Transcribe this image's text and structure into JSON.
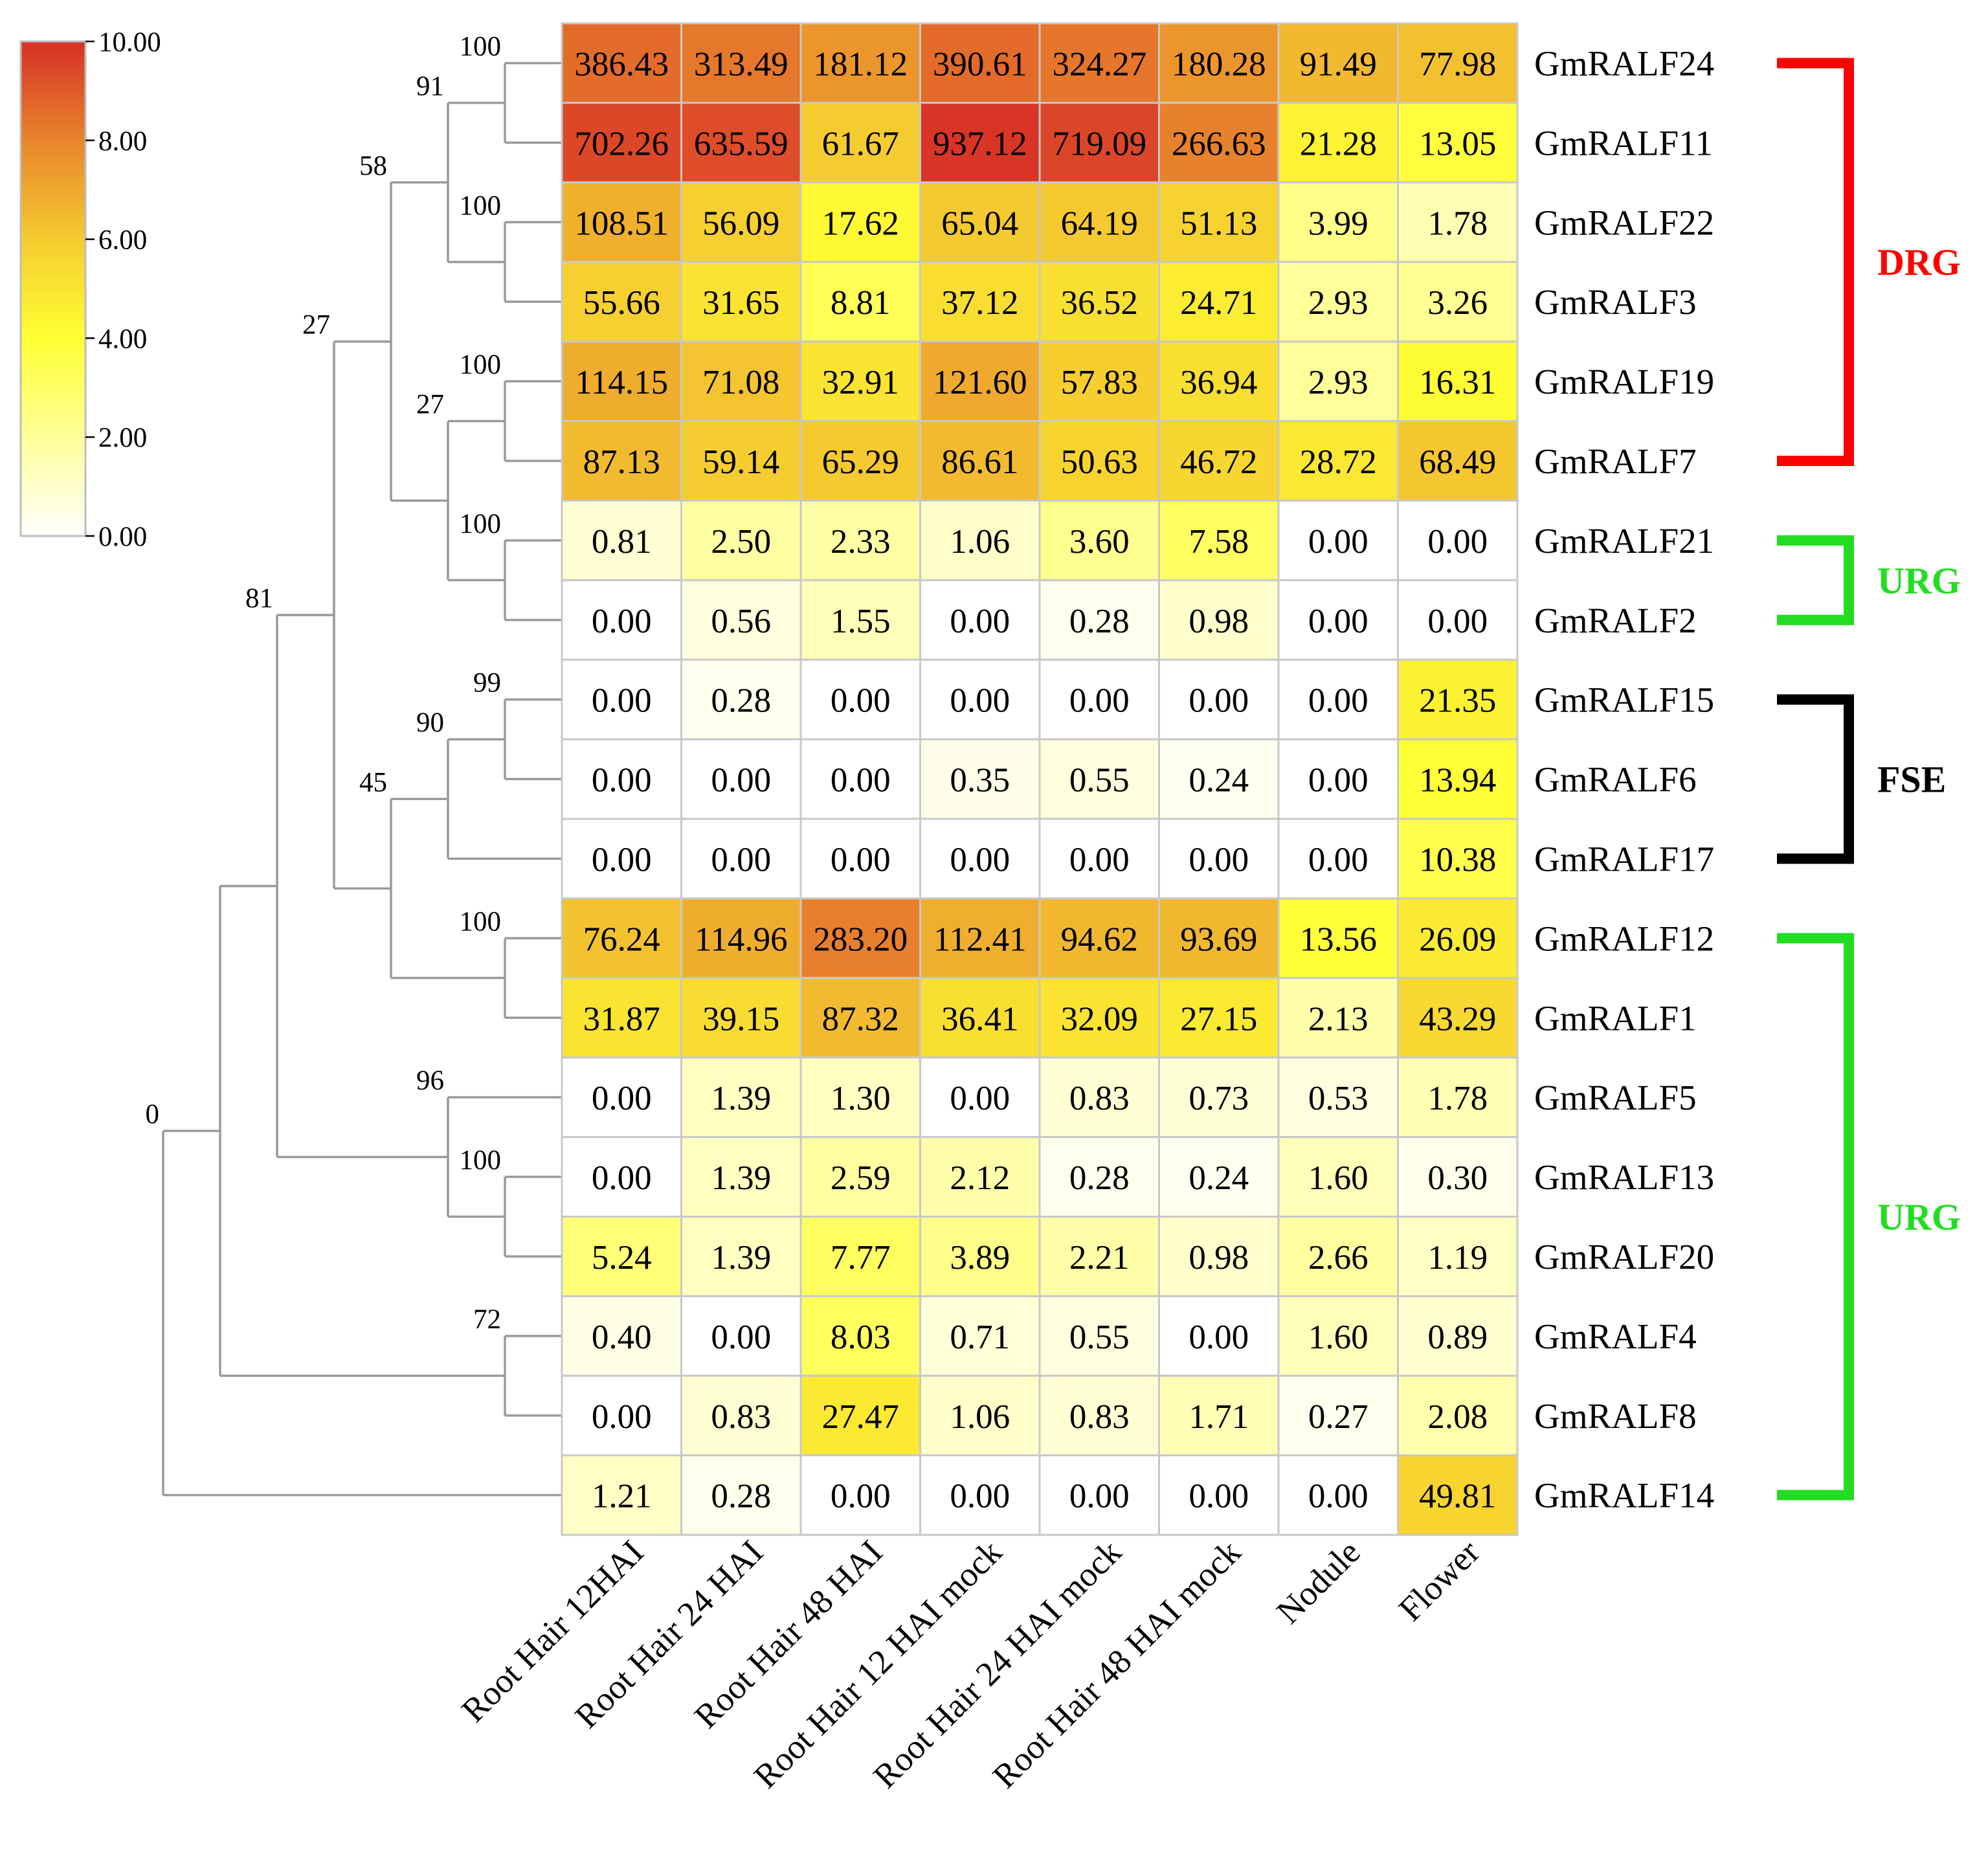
{
  "chart_data": {
    "type": "heatmap",
    "color_scale": {
      "min": 0,
      "max": 10,
      "ticks": [
        "0.00",
        "2.00",
        "4.00",
        "6.00",
        "8.00",
        "10.00"
      ],
      "stops": [
        {
          "at": 0,
          "color": "#ffffff"
        },
        {
          "at": 0.4,
          "color": "#ffff33"
        },
        {
          "at": 0.6,
          "color": "#f5cb30"
        },
        {
          "at": 0.8,
          "color": "#e8852c"
        },
        {
          "at": 1.0,
          "color": "#d73027"
        }
      ],
      "value_transform": "log2(value + 1)"
    },
    "columns": [
      "Root Hair 12HAI",
      "Root Hair 24 HAI",
      "Root Hair 48 HAI",
      "Root Hair 12 HAI mock",
      "Root Hair 24 HAI mock",
      "Root Hair 48 HAI mock",
      "Nodule",
      "Flower"
    ],
    "rows": [
      {
        "gene": "GmRALF24",
        "values": [
          "386.43",
          "313.49",
          "181.12",
          "390.61",
          "324.27",
          "180.28",
          "91.49",
          "77.98"
        ]
      },
      {
        "gene": "GmRALF11",
        "values": [
          "702.26",
          "635.59",
          "61.67",
          "937.12",
          "719.09",
          "266.63",
          "21.28",
          "13.05"
        ]
      },
      {
        "gene": "GmRALF22",
        "values": [
          "108.51",
          "56.09",
          "17.62",
          "65.04",
          "64.19",
          "51.13",
          "3.99",
          "1.78"
        ]
      },
      {
        "gene": "GmRALF3",
        "values": [
          "55.66",
          "31.65",
          "8.81",
          "37.12",
          "36.52",
          "24.71",
          "2.93",
          "3.26"
        ]
      },
      {
        "gene": "GmRALF19",
        "values": [
          "114.15",
          "71.08",
          "32.91",
          "121.60",
          "57.83",
          "36.94",
          "2.93",
          "16.31"
        ]
      },
      {
        "gene": "GmRALF7",
        "values": [
          "87.13",
          "59.14",
          "65.29",
          "86.61",
          "50.63",
          "46.72",
          "28.72",
          "68.49"
        ]
      },
      {
        "gene": "GmRALF21",
        "values": [
          "0.81",
          "2.50",
          "2.33",
          "1.06",
          "3.60",
          "7.58",
          "0.00",
          "0.00"
        ]
      },
      {
        "gene": "GmRALF2",
        "values": [
          "0.00",
          "0.56",
          "1.55",
          "0.00",
          "0.28",
          "0.98",
          "0.00",
          "0.00"
        ]
      },
      {
        "gene": "GmRALF15",
        "values": [
          "0.00",
          "0.28",
          "0.00",
          "0.00",
          "0.00",
          "0.00",
          "0.00",
          "21.35"
        ]
      },
      {
        "gene": "GmRALF6",
        "values": [
          "0.00",
          "0.00",
          "0.00",
          "0.35",
          "0.55",
          "0.24",
          "0.00",
          "13.94"
        ]
      },
      {
        "gene": "GmRALF17",
        "values": [
          "0.00",
          "0.00",
          "0.00",
          "0.00",
          "0.00",
          "0.00",
          "0.00",
          "10.38"
        ]
      },
      {
        "gene": "GmRALF12",
        "values": [
          "76.24",
          "114.96",
          "283.20",
          "112.41",
          "94.62",
          "93.69",
          "13.56",
          "26.09"
        ]
      },
      {
        "gene": "GmRALF1",
        "values": [
          "31.87",
          "39.15",
          "87.32",
          "36.41",
          "32.09",
          "27.15",
          "2.13",
          "43.29"
        ]
      },
      {
        "gene": "GmRALF5",
        "values": [
          "0.00",
          "1.39",
          "1.30",
          "0.00",
          "0.83",
          "0.73",
          "0.53",
          "1.78"
        ]
      },
      {
        "gene": "GmRALF13",
        "values": [
          "0.00",
          "1.39",
          "2.59",
          "2.12",
          "0.28",
          "0.24",
          "1.60",
          "0.30"
        ]
      },
      {
        "gene": "GmRALF20",
        "values": [
          "5.24",
          "1.39",
          "7.77",
          "3.89",
          "2.21",
          "0.98",
          "2.66",
          "1.19"
        ]
      },
      {
        "gene": "GmRALF4",
        "values": [
          "0.40",
          "0.00",
          "8.03",
          "0.71",
          "0.55",
          "0.00",
          "1.60",
          "0.89"
        ]
      },
      {
        "gene": "GmRALF8",
        "values": [
          "0.00",
          "0.83",
          "27.47",
          "1.06",
          "0.83",
          "1.71",
          "0.27",
          "2.08"
        ]
      },
      {
        "gene": "GmRALF14",
        "values": [
          "1.21",
          "0.28",
          "0.00",
          "0.00",
          "0.00",
          "0.00",
          "0.00",
          "49.81"
        ]
      }
    ],
    "dendrogram": {
      "type": "row-clustering tree",
      "nodes": [
        {
          "id": "n24_11",
          "children": [
            "GmRALF24",
            "GmRALF11"
          ],
          "support": "100"
        },
        {
          "id": "n22_3",
          "children": [
            "GmRALF22",
            "GmRALF3"
          ],
          "support": "100"
        },
        {
          "id": "n91",
          "children": [
            "n24_11",
            "n22_3"
          ],
          "support": "91"
        },
        {
          "id": "n19_7",
          "children": [
            "GmRALF19",
            "GmRALF7"
          ],
          "support": "100"
        },
        {
          "id": "n21_2",
          "children": [
            "GmRALF21",
            "GmRALF2"
          ],
          "support": "100"
        },
        {
          "id": "n27a",
          "children": [
            "n19_7",
            "n21_2"
          ],
          "support": "27"
        },
        {
          "id": "n58",
          "children": [
            "n91",
            "n27a"
          ],
          "support": "58"
        },
        {
          "id": "n15_6",
          "children": [
            "GmRALF15",
            "GmRALF6"
          ],
          "support": "99"
        },
        {
          "id": "n90",
          "children": [
            "n15_6",
            "GmRALF17"
          ],
          "support": "90"
        },
        {
          "id": "n12_1",
          "children": [
            "GmRALF12",
            "GmRALF1"
          ],
          "support": "100"
        },
        {
          "id": "n45",
          "children": [
            "n90",
            "n12_1"
          ],
          "support": "45"
        },
        {
          "id": "n27b",
          "children": [
            "n58",
            "n45"
          ],
          "support": "27"
        },
        {
          "id": "n13_20",
          "children": [
            "GmRALF13",
            "GmRALF20"
          ],
          "support": "100"
        },
        {
          "id": "n96",
          "children": [
            "GmRALF5",
            "n13_20"
          ],
          "support": "96"
        },
        {
          "id": "n81",
          "children": [
            "n27b",
            "n96"
          ],
          "support": "81"
        },
        {
          "id": "n4_8",
          "children": [
            "GmRALF4",
            "GmRALF8"
          ],
          "support": "72"
        },
        {
          "id": "n81b",
          "children": [
            "n81",
            "n4_8"
          ],
          "support": ""
        },
        {
          "id": "root",
          "children": [
            "n81b",
            "GmRALF14"
          ],
          "support": "0"
        }
      ]
    },
    "groups": [
      {
        "label": "DRG",
        "color": "#ff0000",
        "first_row": 0,
        "last_row": 5
      },
      {
        "label": "URG",
        "color": "#22dd22",
        "first_row": 6,
        "last_row": 7
      },
      {
        "label": "FSE",
        "color": "#000000",
        "first_row": 8,
        "last_row": 10
      },
      {
        "label": "URG",
        "color": "#22dd22",
        "first_row": 11,
        "last_row": 18
      }
    ],
    "title": "",
    "xlabel": "",
    "ylabel": ""
  }
}
